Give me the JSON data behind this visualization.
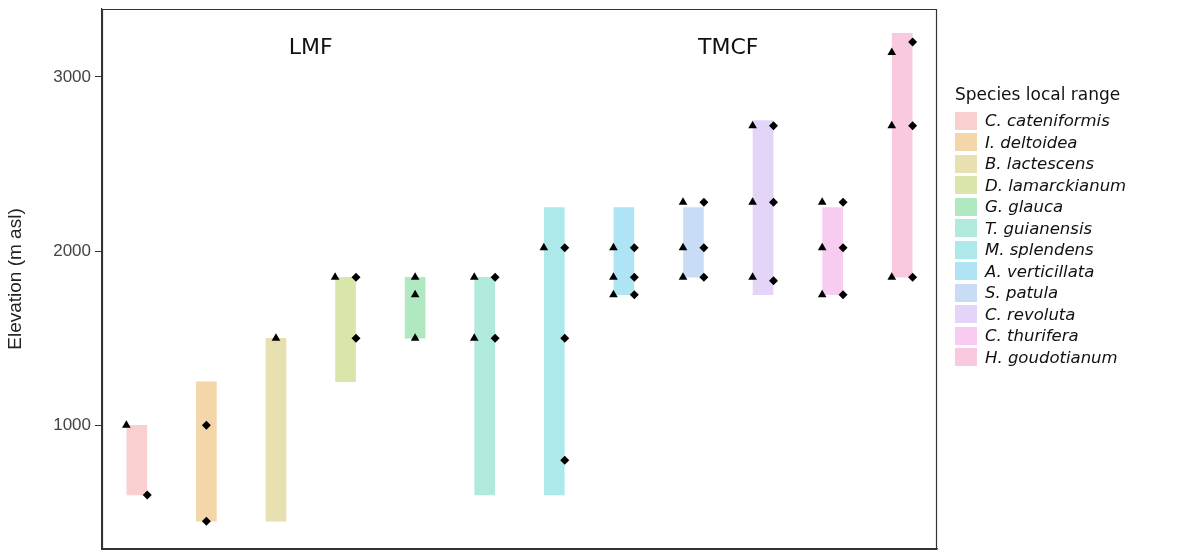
{
  "chart_data": {
    "type": "bar",
    "ylabel": "Elevation (m asl)",
    "annotations": [
      "LMF",
      "TMCF"
    ],
    "legend_title": "Species local range",
    "legend": "right",
    "categories": [
      null,
      null,
      null,
      null,
      null,
      null,
      null,
      null,
      null,
      null,
      null,
      null
    ],
    "ylim": [
      290,
      3390
    ],
    "yticks": [
      1000,
      2000,
      3000
    ],
    "tick_labels": "y",
    "series": [
      {
        "name": "C. cateniformis",
        "color": "#f9d0cf",
        "values": [
          400,
          null,
          null,
          null,
          null,
          null,
          null,
          null,
          null,
          null,
          null,
          null
        ],
        "base": [
          600,
          null,
          null,
          null,
          null,
          null,
          null,
          null,
          null,
          null,
          null,
          null
        ]
      },
      {
        "name": "I. deltoidea",
        "color": "#f3d6aa",
        "values": [
          null,
          800,
          null,
          null,
          null,
          null,
          null,
          null,
          null,
          null,
          null,
          null
        ],
        "base": [
          null,
          450,
          null,
          null,
          null,
          null,
          null,
          null,
          null,
          null,
          null,
          null
        ]
      },
      {
        "name": "B. lactescens",
        "color": "#e8e0b0",
        "values": [
          null,
          null,
          1050,
          null,
          null,
          null,
          null,
          null,
          null,
          null,
          null,
          null
        ],
        "base": [
          null,
          null,
          450,
          null,
          null,
          null,
          null,
          null,
          null,
          null,
          null,
          null
        ]
      },
      {
        "name": "D. lamarckianum",
        "color": "#d8e6aa",
        "values": [
          null,
          null,
          null,
          600,
          null,
          null,
          null,
          null,
          null,
          null,
          null,
          null
        ],
        "base": [
          null,
          null,
          null,
          1250,
          null,
          null,
          null,
          null,
          null,
          null,
          null,
          null
        ]
      },
      {
        "name": "G. glauca",
        "color": "#b0e8c2",
        "values": [
          null,
          null,
          null,
          null,
          350,
          null,
          null,
          null,
          null,
          null,
          null,
          null
        ],
        "base": [
          null,
          null,
          null,
          null,
          1500,
          null,
          null,
          null,
          null,
          null,
          null,
          null
        ]
      },
      {
        "name": "T. guianensis",
        "color": "#b0eadc",
        "values": [
          null,
          null,
          null,
          null,
          null,
          1250,
          null,
          null,
          null,
          null,
          null,
          null
        ],
        "base": [
          null,
          null,
          null,
          null,
          null,
          600,
          null,
          null,
          null,
          null,
          null,
          null
        ]
      },
      {
        "name": "M. splendens",
        "color": "#ade8ea",
        "values": [
          null,
          null,
          null,
          null,
          null,
          null,
          1650,
          null,
          null,
          null,
          null,
          null
        ],
        "base": [
          null,
          null,
          null,
          null,
          null,
          null,
          600,
          null,
          null,
          null,
          null,
          null
        ]
      },
      {
        "name": "A. verticillata",
        "color": "#aee4f4",
        "values": [
          null,
          null,
          null,
          null,
          null,
          null,
          null,
          500,
          null,
          null,
          null,
          null
        ],
        "base": [
          null,
          null,
          null,
          null,
          null,
          null,
          null,
          1750,
          null,
          null,
          null,
          null
        ]
      },
      {
        "name": "S. patula",
        "color": "#c9dcf6",
        "values": [
          null,
          null,
          null,
          null,
          null,
          null,
          null,
          null,
          400,
          null,
          null,
          null
        ],
        "base": [
          null,
          null,
          null,
          null,
          null,
          null,
          null,
          null,
          1850,
          null,
          null,
          null
        ]
      },
      {
        "name": "C. revoluta",
        "color": "#e4d4f8",
        "values": [
          null,
          null,
          null,
          null,
          null,
          null,
          null,
          null,
          null,
          1000,
          null,
          null
        ],
        "base": [
          null,
          null,
          null,
          null,
          null,
          null,
          null,
          null,
          null,
          1750,
          null,
          null
        ]
      },
      {
        "name": "C. thurifera",
        "color": "#f8ccf0",
        "values": [
          null,
          null,
          null,
          null,
          null,
          null,
          null,
          null,
          null,
          null,
          500,
          null
        ],
        "base": [
          null,
          null,
          null,
          null,
          null,
          null,
          null,
          null,
          null,
          null,
          1750,
          null
        ]
      },
      {
        "name": "H. goudotianum",
        "color": "#f9c9e0",
        "values": [
          null,
          null,
          null,
          null,
          null,
          null,
          null,
          null,
          null,
          null,
          null,
          1400
        ],
        "base": [
          null,
          null,
          null,
          null,
          null,
          null,
          null,
          null,
          null,
          null,
          null,
          1850
        ]
      },
      {
        "type": "scatter",
        "marker": "triangle",
        "color": "#000000",
        "values": [
          1000,
          null,
          1500,
          1850,
          1850,
          1850,
          2020,
          2020,
          2280,
          2720,
          2280,
          3140
        ]
      },
      {
        "type": "scatter",
        "marker": "triangle",
        "color": "#000000",
        "values": [
          null,
          null,
          null,
          null,
          1750,
          1500,
          null,
          1850,
          2020,
          2280,
          2020,
          2720
        ]
      },
      {
        "type": "scatter",
        "marker": "triangle",
        "color": "#000000",
        "values": [
          null,
          null,
          null,
          null,
          1500,
          null,
          null,
          1750,
          1850,
          1850,
          1750,
          1850
        ]
      },
      {
        "type": "scatter",
        "marker": "diamond",
        "color": "#000000",
        "values": [
          600,
          1000,
          null,
          1850,
          null,
          1850,
          2020,
          2020,
          2280,
          2720,
          2280,
          3200
        ]
      },
      {
        "type": "scatter",
        "marker": "diamond",
        "color": "#000000",
        "values": [
          null,
          450,
          null,
          1500,
          null,
          1500,
          1500,
          1850,
          2020,
          2280,
          2020,
          2720
        ]
      },
      {
        "type": "scatter",
        "marker": "diamond",
        "color": "#000000",
        "values": [
          null,
          null,
          null,
          null,
          null,
          null,
          800,
          1750,
          1850,
          1830,
          1750,
          1850
        ]
      }
    ]
  }
}
